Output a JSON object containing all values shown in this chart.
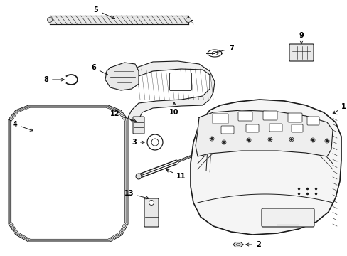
{
  "bg_color": "#ffffff",
  "line_color": "#1a1a1a",
  "text_color": "#000000",
  "fig_width": 4.89,
  "fig_height": 3.6,
  "dpi": 100,
  "label_fs": 7.0
}
